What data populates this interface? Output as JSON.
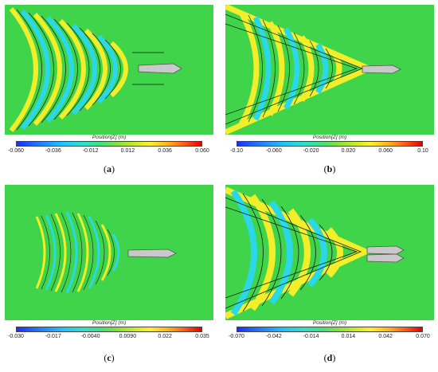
{
  "panels": [
    {
      "id": "a",
      "colorbar_title": "Position[Z] (m)",
      "ticks": [
        "-0.060",
        "-0.036",
        "-0.012",
        "0.012",
        "0.036",
        "0.060"
      ],
      "caption_open": "(",
      "caption_letter": "a",
      "caption_close": ")"
    },
    {
      "id": "b",
      "colorbar_title": "Position[Z] (m)",
      "ticks": [
        "-0.10",
        "-0.060",
        "-0.020",
        "0.020",
        "0.060",
        "0.10"
      ],
      "caption_open": "(",
      "caption_letter": "b",
      "caption_close": ")"
    },
    {
      "id": "c",
      "colorbar_title": "Position[Z] (m)",
      "ticks": [
        "-0.030",
        "-0.017",
        "-0.0040",
        "0.0090",
        "0.022",
        "0.035"
      ],
      "caption_open": "(",
      "caption_letter": "c",
      "caption_close": ")"
    },
    {
      "id": "d",
      "colorbar_title": "Position[Z] (m)",
      "ticks": [
        "-0.070",
        "-0.042",
        "-0.014",
        "0.014",
        "0.042",
        "0.070"
      ],
      "caption_open": "(",
      "caption_letter": "d",
      "caption_close": ")"
    }
  ],
  "colors": {
    "background_green": "#3fd44a",
    "crest_yellow": "#f2ee2a",
    "trough_cyan": "#2ad8e8",
    "contour": "#1a1a1a"
  }
}
